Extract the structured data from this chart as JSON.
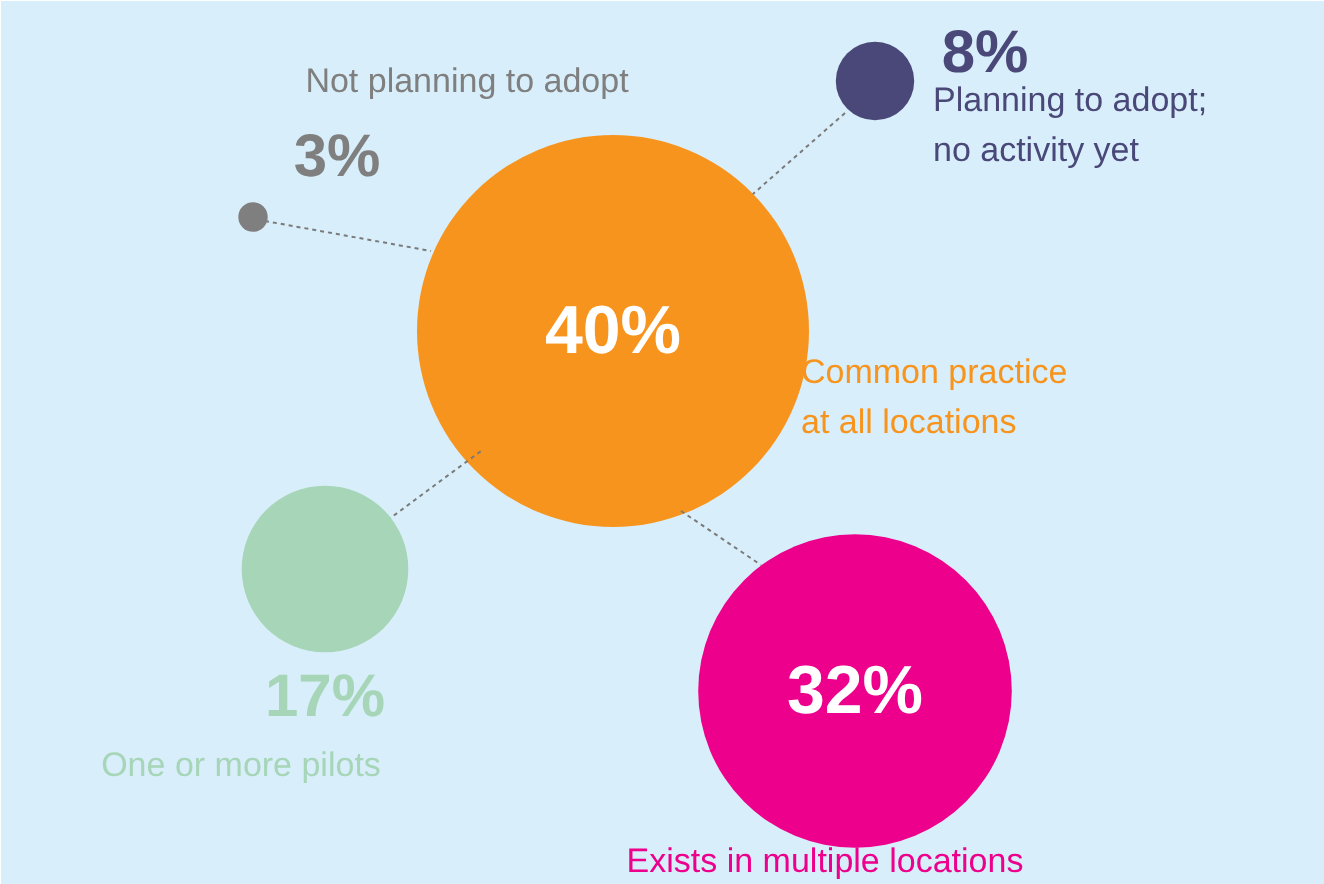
{
  "chart_data": {
    "type": "other",
    "categories": [
      "Not planning to adopt",
      "Planning to adopt;\nno activity yet",
      "Common practice\nat all locations",
      "One or more pilots",
      "Exists in multiple locations"
    ],
    "values": [
      3,
      8,
      40,
      17,
      32
    ],
    "value_labels": [
      "3%",
      "8%",
      "40%",
      "17%",
      "32%"
    ],
    "colors": [
      "#7f7f7f",
      "#4a4878",
      "#f7941d",
      "#a6d5b8",
      "#ec008c"
    ]
  }
}
